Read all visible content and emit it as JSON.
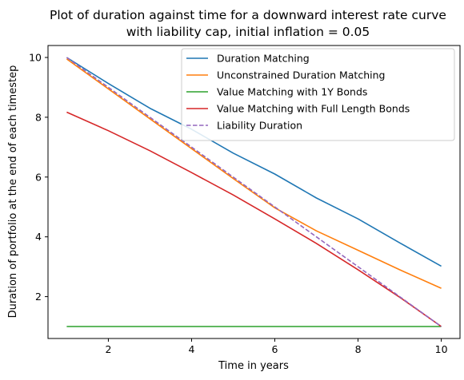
{
  "chart_data": {
    "type": "line",
    "title": "Plot of duration against time for a downward interest rate curve",
    "subtitle": "with liability cap, initial inflation = 0.05",
    "xlabel": "Time in years",
    "ylabel": "Duration of portfolio at the end of each timestep",
    "xlim": [
      0.55,
      10.45
    ],
    "ylim": [
      0.6,
      10.4
    ],
    "xticks": [
      2,
      4,
      6,
      8,
      10
    ],
    "yticks": [
      2,
      4,
      6,
      8,
      10
    ],
    "grid": false,
    "legend_position": "top-right",
    "x": [
      1,
      2,
      3,
      4,
      5,
      6,
      7,
      8,
      9,
      10
    ],
    "series": [
      {
        "name": "Duration Matching",
        "color": "#1f77b4",
        "style": "solid",
        "values": [
          10.0,
          9.13,
          8.3,
          7.6,
          6.8,
          6.1,
          5.3,
          4.6,
          3.8,
          3.02
        ]
      },
      {
        "name": "Unconstrained Duration Matching",
        "color": "#ff7f0e",
        "style": "solid",
        "values": [
          9.95,
          8.95,
          7.95,
          6.95,
          5.95,
          4.97,
          4.2,
          3.55,
          2.9,
          2.28
        ]
      },
      {
        "name": "Value Matching with 1Y Bonds",
        "color": "#2ca02c",
        "style": "solid",
        "values": [
          1.0,
          1.0,
          1.0,
          1.0,
          1.0,
          1.0,
          1.0,
          1.0,
          1.0,
          1.0
        ]
      },
      {
        "name": "Value Matching with Full Length Bonds",
        "color": "#d62728",
        "style": "solid",
        "values": [
          8.17,
          7.55,
          6.88,
          6.15,
          5.4,
          4.6,
          3.78,
          2.9,
          1.98,
          1.0
        ]
      },
      {
        "name": "Liability Duration",
        "color": "#9467bd",
        "style": "dashed",
        "values": [
          10.0,
          9.0,
          8.0,
          7.0,
          6.0,
          5.0,
          4.0,
          3.0,
          2.0,
          1.0
        ]
      }
    ]
  }
}
